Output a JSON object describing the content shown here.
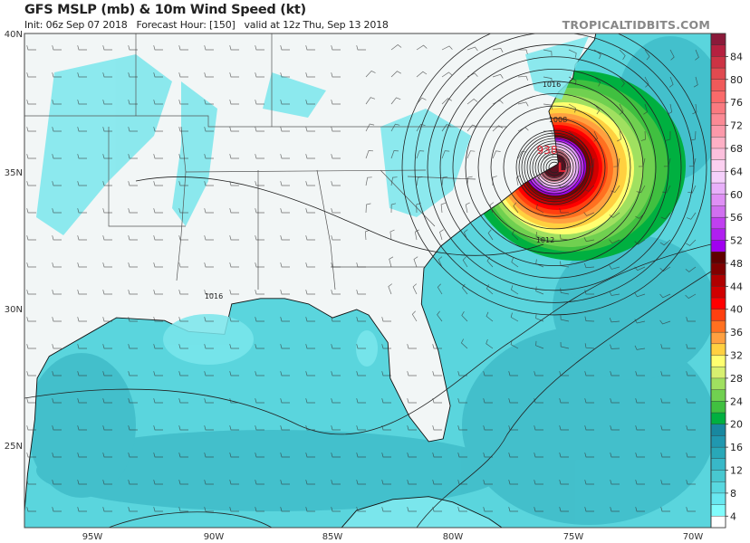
{
  "header": {
    "title": "GFS MSLP (mb) & 10m Wind Speed (kt)",
    "init": "Init: 06z Sep 07 2018",
    "forecast_hour": "Forecast Hour: [150]",
    "valid": "valid at 12z Thu, Sep 13 2018",
    "brand": "TROPICALTIDBITS.COM"
  },
  "axes": {
    "lat_labels": [
      "40N",
      "35N",
      "30N",
      "25N"
    ],
    "lon_labels": [
      "95W",
      "90W",
      "85W",
      "80W",
      "75W",
      "70W"
    ]
  },
  "pressure_labels": {
    "center_low": "938",
    "low_symbol": "L",
    "isobar_1016_ne": "1016",
    "isobar_1008": "1008",
    "isobar_1012": "1012",
    "isobar_1016_gulf": "1016"
  },
  "colorbar": {
    "unit": "kt",
    "labels": [
      "84",
      "80",
      "76",
      "72",
      "68",
      "64",
      "60",
      "56",
      "52",
      "48",
      "44",
      "40",
      "36",
      "32",
      "28",
      "24",
      "20",
      "16",
      "12",
      "8",
      "4"
    ],
    "colors": [
      "#8b1a3a",
      "#b5203f",
      "#cc3344",
      "#e04a50",
      "#f05a5a",
      "#fa6a6a",
      "#fa7a80",
      "#fb8a95",
      "#fc99aa",
      "#fdb0c5",
      "#fcc0dd",
      "#fbd0f0",
      "#f5d0fb",
      "#e8b0fa",
      "#df90f5",
      "#d070f0",
      "#c040f0",
      "#b020f0",
      "#a000f0",
      "#600000",
      "#800000",
      "#b00000",
      "#d00000",
      "#ff0000",
      "#ff4010",
      "#ff7020",
      "#ffa040",
      "#ffd040",
      "#ffff70",
      "#d8f070",
      "#a0e060",
      "#70d050",
      "#40c040",
      "#00b040",
      "#1888a0",
      "#2098b0",
      "#28a8b8",
      "#38b8c8",
      "#48c8d0",
      "#58d8e0",
      "#68e8f0",
      "#80fcfc",
      "#ffffff"
    ]
  },
  "colors": {
    "ocean": "#5ad5dd",
    "ocean_dark": "#3cb8c6",
    "land": "#f2f6f6"
  }
}
